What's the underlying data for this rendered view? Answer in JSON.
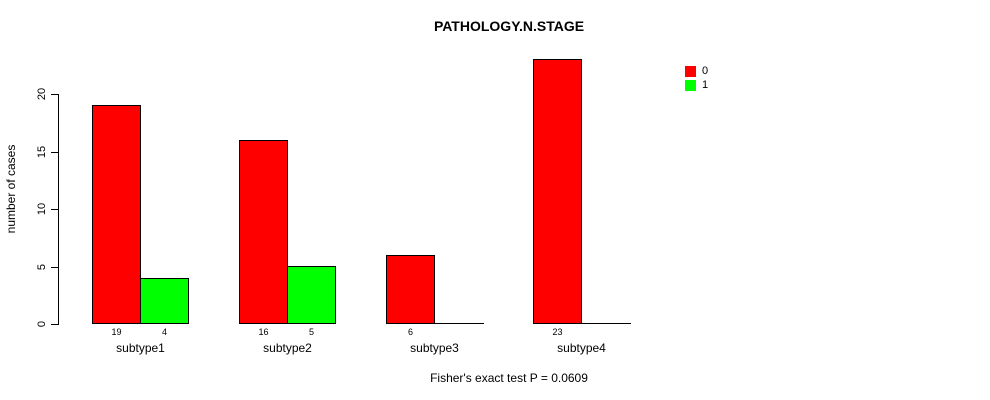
{
  "title": "PATHOLOGY.N.STAGE",
  "footer": "Fisher's exact test P = 0.0609",
  "chart_data": {
    "type": "bar",
    "title": "PATHOLOGY.N.STAGE",
    "categories": [
      "subtype1",
      "subtype2",
      "subtype3",
      "subtype4"
    ],
    "series": [
      {
        "name": "0",
        "color": "#ff0000",
        "values": [
          19,
          16,
          6,
          23
        ]
      },
      {
        "name": "1",
        "color": "#00ff00",
        "values": [
          4,
          5,
          0,
          0
        ]
      }
    ],
    "xlabel": "",
    "ylabel": "number of cases",
    "ylim": [
      0,
      20
    ],
    "yticks": [
      0,
      5,
      10,
      15,
      20
    ],
    "bar_value_labels": [
      [
        "19",
        "16",
        "6",
        "23"
      ],
      [
        "4",
        "5",
        "0",
        "0"
      ]
    ],
    "show_bar_value_labels": true,
    "legend_position": "top-right",
    "legend_entries": [
      "0",
      "1"
    ],
    "grid": false,
    "annotation": "Fisher's exact test P = 0.0609"
  },
  "colors": {
    "bar_red": "#ff0000",
    "bar_green": "#00ff00",
    "bar_border": "#000000",
    "axis": "#000000",
    "background": "#ffffff",
    "text": "#000000"
  }
}
